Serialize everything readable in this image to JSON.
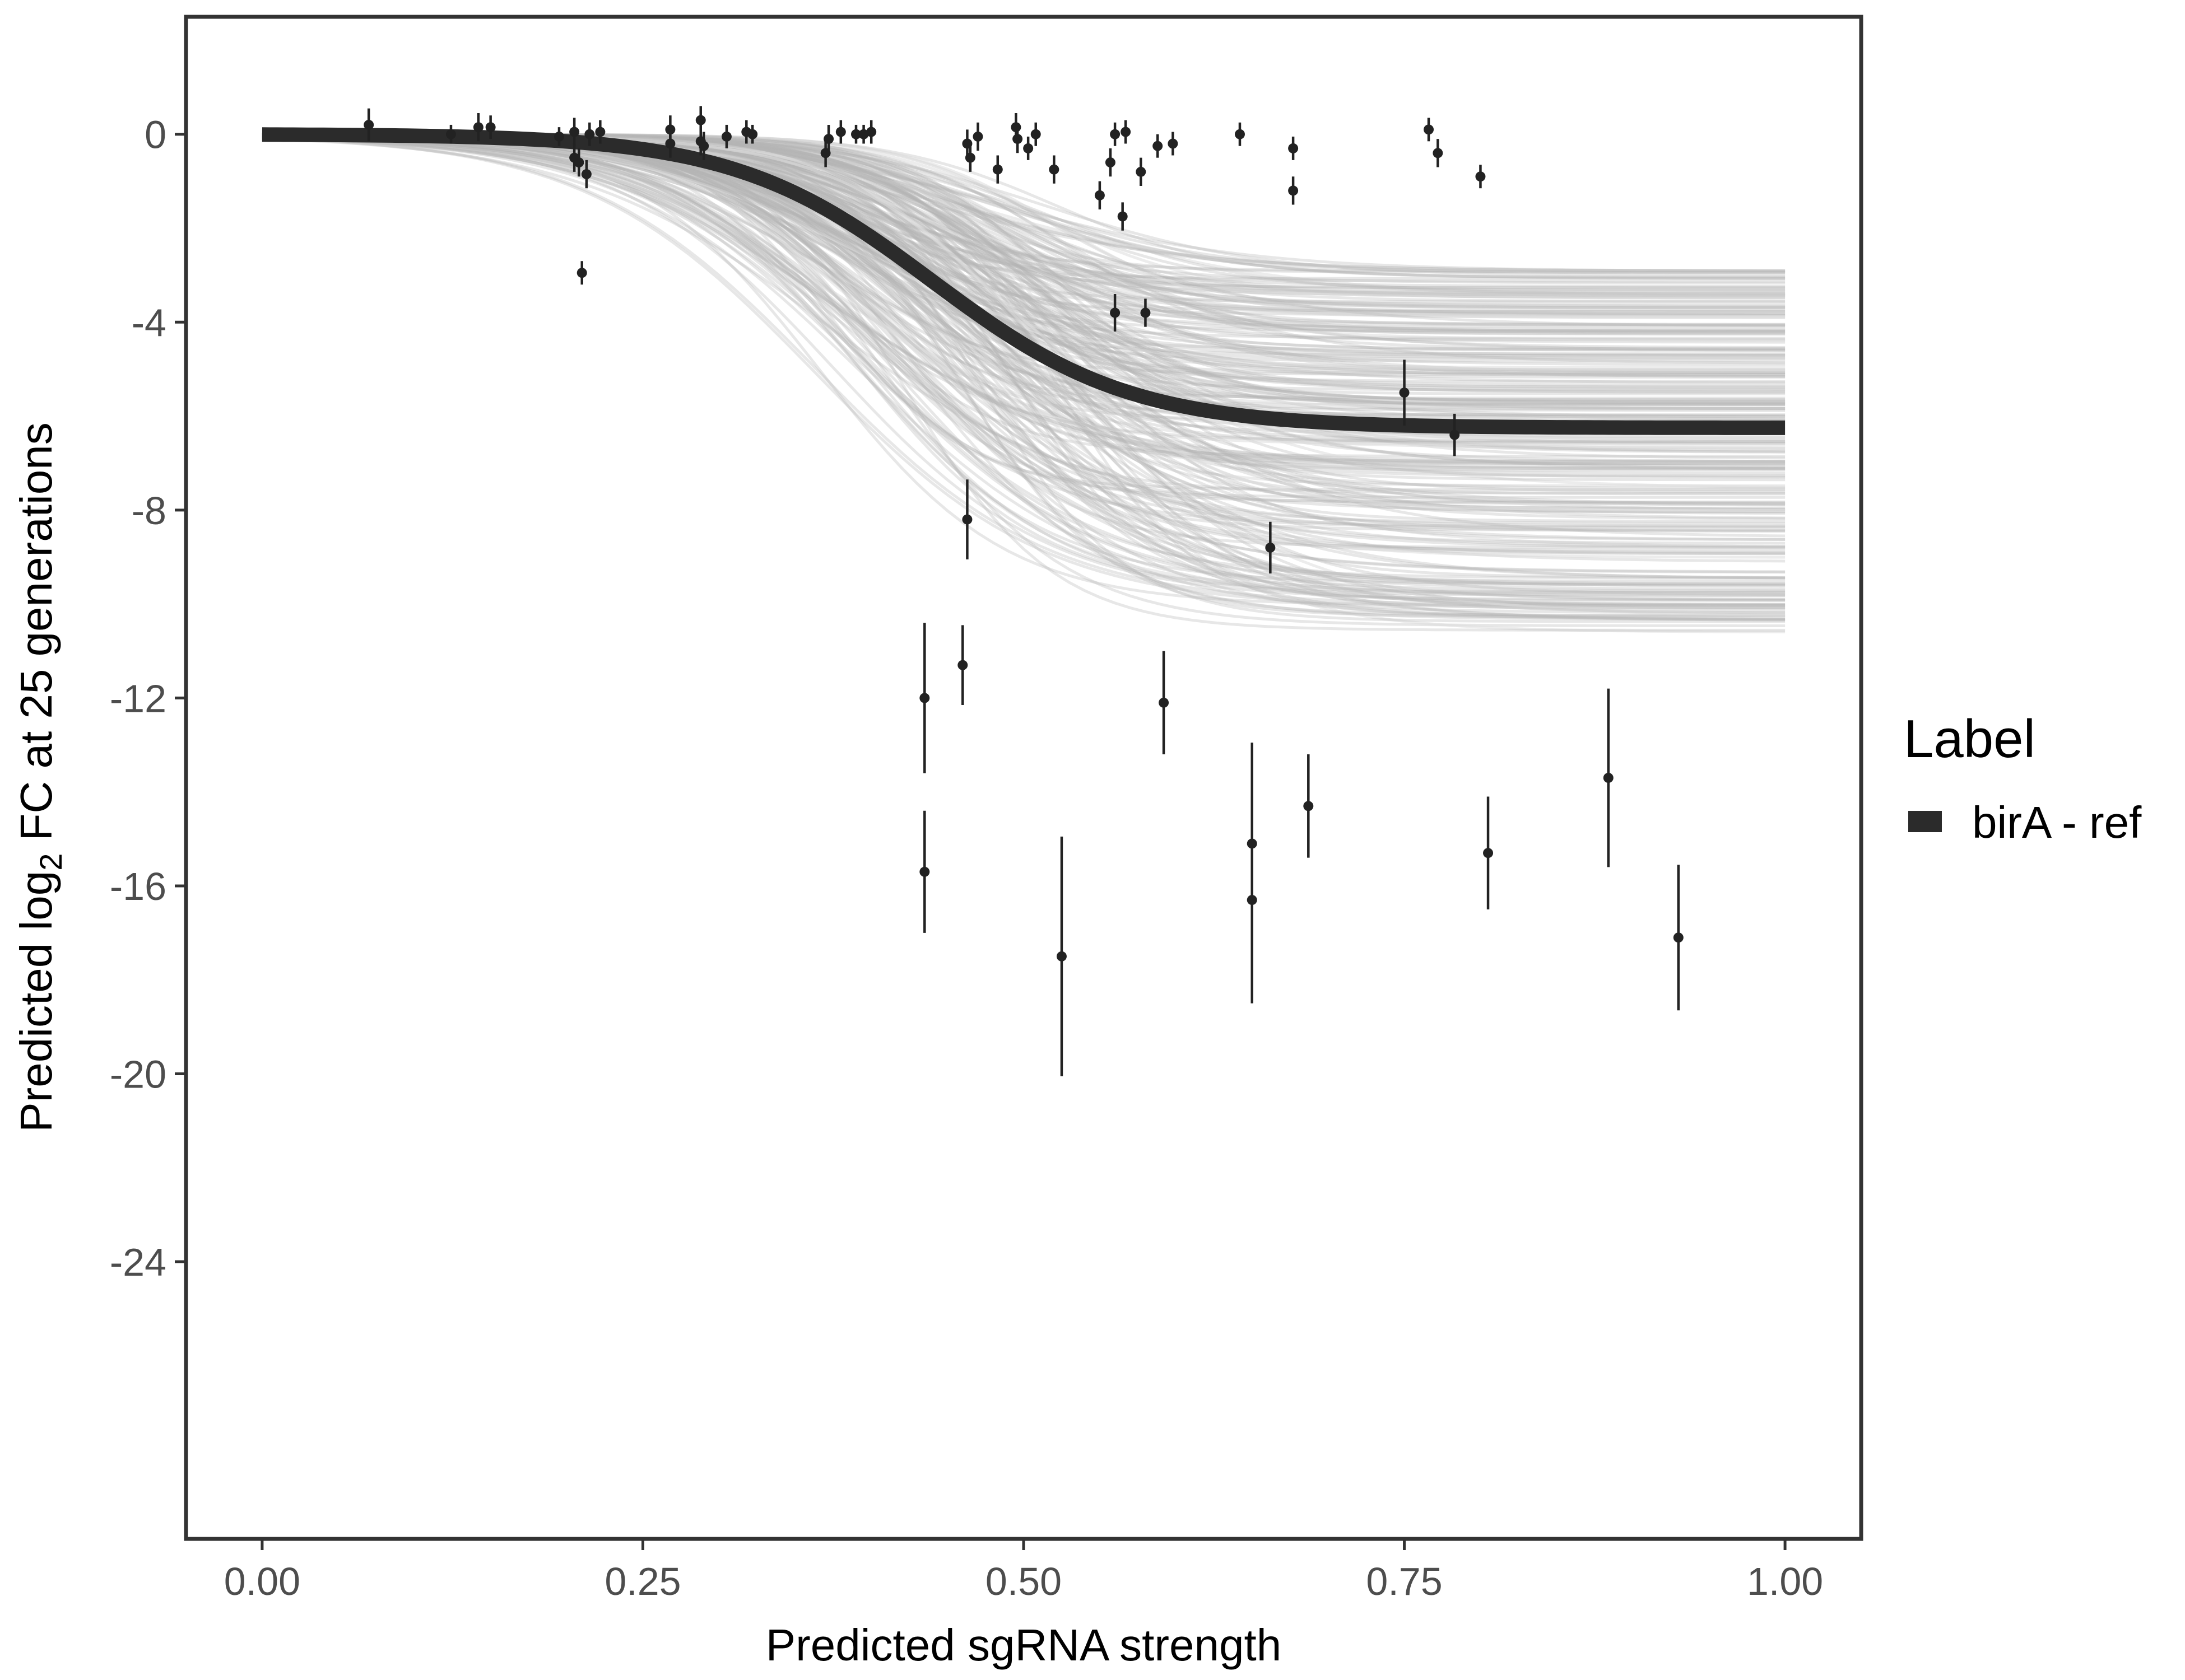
{
  "chart_data": {
    "type": "line",
    "xlabel": "Predicted sgRNA strength",
    "ylabel_prefix": "Predicted  log",
    "ylabel_subscript": "2",
    "ylabel_suffix": " FC at 25 generations",
    "xlim": [
      -0.05,
      1.05
    ],
    "ylim": [
      -29.9,
      2.5
    ],
    "x_ticks": [
      0.0,
      0.25,
      0.5,
      0.75,
      1.0
    ],
    "x_tick_labels": [
      "0.00",
      "0.25",
      "0.50",
      "0.75",
      "1.00"
    ],
    "y_ticks": [
      0,
      -4,
      -8,
      -12,
      -16,
      -20,
      -24
    ],
    "y_tick_labels": [
      "0",
      "-4",
      "-8",
      "-12",
      "-16",
      "-20",
      "-24"
    ],
    "grid": false,
    "legend": {
      "title": "Label",
      "position": "right",
      "entries": [
        {
          "label": "birA - ref",
          "color": "#2b2b2b"
        }
      ]
    },
    "colors": {
      "main_line": "#2b2b2b",
      "band": "#b3b3b3",
      "points": "#222222",
      "frame": "#333333"
    },
    "main_curve": {
      "name": "birA - ref",
      "model": "logistic",
      "max": 0.0,
      "min": -6.25,
      "midpoint": 0.44,
      "slope": 0.065
    },
    "band": {
      "min_range": [
        -2.9,
        -10.7
      ],
      "midpoint_range": [
        0.36,
        0.53
      ],
      "slope_range": [
        0.045,
        0.085
      ],
      "draws": 260
    },
    "points": [
      {
        "x": 0.07,
        "y": 0.2,
        "err": 0.35
      },
      {
        "x": 0.124,
        "y": 0.0,
        "err": 0.2
      },
      {
        "x": 0.142,
        "y": 0.15,
        "err": 0.3
      },
      {
        "x": 0.15,
        "y": 0.15,
        "err": 0.25
      },
      {
        "x": 0.195,
        "y": -0.05,
        "err": 0.2
      },
      {
        "x": 0.205,
        "y": 0.05,
        "err": 0.3
      },
      {
        "x": 0.205,
        "y": -0.5,
        "err": 0.3
      },
      {
        "x": 0.208,
        "y": -0.6,
        "err": 0.3
      },
      {
        "x": 0.21,
        "y": -2.95,
        "err": 0.25
      },
      {
        "x": 0.213,
        "y": -0.85,
        "err": 0.3
      },
      {
        "x": 0.215,
        "y": 0.0,
        "err": 0.25
      },
      {
        "x": 0.222,
        "y": 0.05,
        "err": 0.25
      },
      {
        "x": 0.268,
        "y": 0.1,
        "err": 0.3
      },
      {
        "x": 0.268,
        "y": -0.2,
        "err": 0.3
      },
      {
        "x": 0.288,
        "y": 0.3,
        "err": 0.3
      },
      {
        "x": 0.288,
        "y": -0.15,
        "err": 0.3
      },
      {
        "x": 0.29,
        "y": -0.25,
        "err": 0.3
      },
      {
        "x": 0.305,
        "y": -0.05,
        "err": 0.25
      },
      {
        "x": 0.318,
        "y": 0.05,
        "err": 0.25
      },
      {
        "x": 0.322,
        "y": 0.0,
        "err": 0.2
      },
      {
        "x": 0.37,
        "y": -0.4,
        "err": 0.3
      },
      {
        "x": 0.372,
        "y": -0.1,
        "err": 0.3
      },
      {
        "x": 0.38,
        "y": 0.05,
        "err": 0.25
      },
      {
        "x": 0.39,
        "y": 0.0,
        "err": 0.2
      },
      {
        "x": 0.395,
        "y": 0.0,
        "err": 0.2
      },
      {
        "x": 0.4,
        "y": 0.05,
        "err": 0.25
      },
      {
        "x": 0.435,
        "y": -12.0,
        "err": 1.6
      },
      {
        "x": 0.435,
        "y": -15.7,
        "err": 1.3
      },
      {
        "x": 0.46,
        "y": -11.3,
        "err": 0.85
      },
      {
        "x": 0.463,
        "y": -8.2,
        "err": 0.85
      },
      {
        "x": 0.463,
        "y": -0.2,
        "err": 0.3
      },
      {
        "x": 0.465,
        "y": -0.5,
        "err": 0.3
      },
      {
        "x": 0.47,
        "y": -0.05,
        "err": 0.3
      },
      {
        "x": 0.483,
        "y": -0.75,
        "err": 0.3
      },
      {
        "x": 0.495,
        "y": 0.15,
        "err": 0.3
      },
      {
        "x": 0.496,
        "y": -0.1,
        "err": 0.3
      },
      {
        "x": 0.503,
        "y": -0.3,
        "err": 0.25
      },
      {
        "x": 0.508,
        "y": 0.0,
        "err": 0.25
      },
      {
        "x": 0.52,
        "y": -0.75,
        "err": 0.3
      },
      {
        "x": 0.525,
        "y": -17.5,
        "err": 2.55
      },
      {
        "x": 0.55,
        "y": -1.3,
        "err": 0.3
      },
      {
        "x": 0.557,
        "y": -0.6,
        "err": 0.3
      },
      {
        "x": 0.56,
        "y": -3.8,
        "err": 0.4
      },
      {
        "x": 0.56,
        "y": 0.0,
        "err": 0.25
      },
      {
        "x": 0.565,
        "y": -1.75,
        "err": 0.3
      },
      {
        "x": 0.567,
        "y": 0.05,
        "err": 0.25
      },
      {
        "x": 0.577,
        "y": -0.8,
        "err": 0.3
      },
      {
        "x": 0.58,
        "y": -3.8,
        "err": 0.3
      },
      {
        "x": 0.588,
        "y": -0.25,
        "err": 0.25
      },
      {
        "x": 0.592,
        "y": -12.1,
        "err": 1.1
      },
      {
        "x": 0.598,
        "y": -0.2,
        "err": 0.25
      },
      {
        "x": 0.642,
        "y": 0.0,
        "err": 0.25
      },
      {
        "x": 0.65,
        "y": -15.1,
        "err": 2.15
      },
      {
        "x": 0.65,
        "y": -16.3,
        "err": 2.2
      },
      {
        "x": 0.662,
        "y": -8.8,
        "err": 0.55
      },
      {
        "x": 0.677,
        "y": -0.3,
        "err": 0.25
      },
      {
        "x": 0.677,
        "y": -1.2,
        "err": 0.3
      },
      {
        "x": 0.687,
        "y": -14.3,
        "err": 1.1
      },
      {
        "x": 0.75,
        "y": -5.5,
        "err": 0.7
      },
      {
        "x": 0.766,
        "y": 0.1,
        "err": 0.25
      },
      {
        "x": 0.772,
        "y": -0.4,
        "err": 0.3
      },
      {
        "x": 0.783,
        "y": -6.4,
        "err": 0.45
      },
      {
        "x": 0.8,
        "y": -0.9,
        "err": 0.25
      },
      {
        "x": 0.805,
        "y": -15.3,
        "err": 1.2
      },
      {
        "x": 0.884,
        "y": -13.7,
        "err": 1.9
      },
      {
        "x": 0.93,
        "y": -17.1,
        "err": 1.55
      }
    ]
  }
}
